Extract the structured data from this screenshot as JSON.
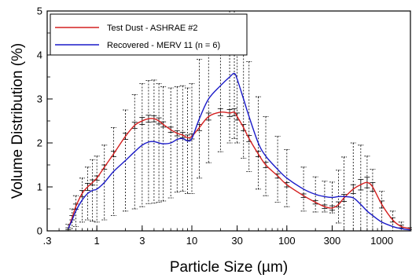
{
  "chart_data": {
    "type": "line",
    "xlabel": "Particle Size (µm)",
    "ylabel": "Volume Distribution (%)",
    "xscale": "log",
    "xlim": [
      0.3,
      2000
    ],
    "ylim": [
      0,
      5
    ],
    "xticks": [
      {
        "value": 0.3,
        "label": ".3"
      },
      {
        "value": 1,
        "label": "1"
      },
      {
        "value": 3,
        "label": "3"
      },
      {
        "value": 10,
        "label": "10"
      },
      {
        "value": 30,
        "label": "30"
      },
      {
        "value": 100,
        "label": "100"
      },
      {
        "value": 300,
        "label": "300"
      },
      {
        "value": 1000,
        "label": "1000"
      }
    ],
    "yticks": [
      0,
      1,
      2,
      3,
      4,
      5
    ],
    "grid": false,
    "legend_position": "top-left",
    "series": [
      {
        "name": "Test Dust - ASHRAE #2",
        "color": "#d42020",
        "x": [
          0.5,
          0.55,
          0.6,
          0.7,
          0.8,
          0.9,
          1.0,
          1.2,
          1.5,
          2.0,
          2.5,
          3.0,
          3.5,
          4.0,
          4.5,
          5.0,
          6.0,
          7.0,
          8.0,
          9.0,
          10.0,
          12.0,
          15.0,
          20.0,
          25.0,
          28.0,
          30.0,
          35.0,
          40.0,
          50.0,
          60.0,
          80.0,
          100.0,
          150.0,
          200.0,
          250.0,
          300.0,
          350.0,
          400.0,
          500.0,
          600.0,
          700.0,
          800.0,
          1000.0,
          1300.0,
          1600.0,
          2000.0
        ],
        "y": [
          0.05,
          0.3,
          0.55,
          0.85,
          1.0,
          1.1,
          1.2,
          1.45,
          1.75,
          2.15,
          2.4,
          2.5,
          2.55,
          2.55,
          2.5,
          2.42,
          2.3,
          2.22,
          2.18,
          2.12,
          2.15,
          2.35,
          2.6,
          2.7,
          2.68,
          2.7,
          2.6,
          2.35,
          2.1,
          1.75,
          1.5,
          1.25,
          1.05,
          0.8,
          0.65,
          0.55,
          0.52,
          0.6,
          0.75,
          0.95,
          1.05,
          1.1,
          1.0,
          0.6,
          0.25,
          0.1,
          0.05
        ],
        "error": [
          0.02,
          0.05,
          0.06,
          0.07,
          0.08,
          0.06,
          0.05,
          0.05,
          0.06,
          0.07,
          0.07,
          0.08,
          0.08,
          0.07,
          0.07,
          0.06,
          0.06,
          0.06,
          0.06,
          0.06,
          0.06,
          0.07,
          0.08,
          0.08,
          0.08,
          0.08,
          0.08,
          0.07,
          0.07,
          0.06,
          0.06,
          0.05,
          0.05,
          0.04,
          0.04,
          0.04,
          0.05,
          0.06,
          0.08,
          0.1,
          0.12,
          0.12,
          0.1,
          0.08,
          0.05,
          0.03,
          0.02
        ]
      },
      {
        "name": "Recovered - MERV 11 (n = 6)",
        "color": "#1a1ac8",
        "x": [
          0.5,
          0.55,
          0.6,
          0.7,
          0.8,
          0.9,
          1.0,
          1.2,
          1.5,
          2.0,
          2.5,
          3.0,
          3.5,
          4.0,
          4.5,
          5.0,
          6.0,
          7.0,
          8.0,
          9.0,
          10.0,
          12.0,
          15.0,
          20.0,
          25.0,
          28.0,
          30.0,
          35.0,
          40.0,
          50.0,
          60.0,
          80.0,
          100.0,
          150.0,
          200.0,
          250.0,
          300.0,
          350.0,
          400.0,
          500.0,
          600.0,
          700.0,
          800.0,
          1000.0,
          1300.0,
          1600.0,
          2000.0
        ],
        "y": [
          0.05,
          0.25,
          0.45,
          0.7,
          0.85,
          0.92,
          0.95,
          1.1,
          1.35,
          1.6,
          1.8,
          1.95,
          2.02,
          2.03,
          2.0,
          1.98,
          2.0,
          2.08,
          2.1,
          2.05,
          2.1,
          2.55,
          3.0,
          3.3,
          3.5,
          3.58,
          3.45,
          3.0,
          2.6,
          2.0,
          1.7,
          1.4,
          1.2,
          0.95,
          0.83,
          0.78,
          0.76,
          0.78,
          0.78,
          0.75,
          0.6,
          0.45,
          0.35,
          0.2,
          0.1,
          0.05,
          0.02
        ],
        "error": [
          0.1,
          0.25,
          0.35,
          0.5,
          0.6,
          0.7,
          0.75,
          0.85,
          1.0,
          1.15,
          1.3,
          1.4,
          1.4,
          1.4,
          1.35,
          1.3,
          1.25,
          1.2,
          1.2,
          1.2,
          1.25,
          1.35,
          1.45,
          1.5,
          1.5,
          1.48,
          1.45,
          1.35,
          1.25,
          1.05,
          0.9,
          0.75,
          0.65,
          0.5,
          0.4,
          0.35,
          0.35,
          0.6,
          0.9,
          1.25,
          1.35,
          1.25,
          1.05,
          0.7,
          0.35,
          0.15,
          0.05
        ]
      }
    ]
  }
}
